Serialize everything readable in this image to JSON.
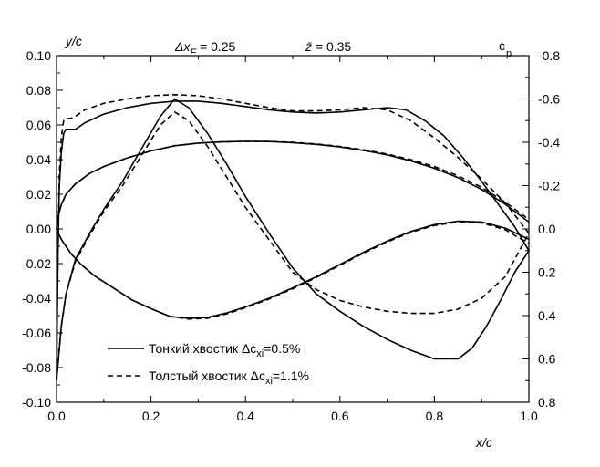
{
  "chart_data": {
    "type": "line",
    "x_axis": {
      "label": "x/c",
      "ticks": [
        "0.0",
        "0.2",
        "0.4",
        "0.6",
        "0.8",
        "1.0"
      ],
      "range": [
        0,
        1
      ]
    },
    "y_axis_left": {
      "label": "y/c",
      "ticks": [
        "0.10",
        "0.08",
        "0.06",
        "0.04",
        "0.02",
        "0.00",
        "-0.02",
        "-0.04",
        "-0.06",
        "-0.08",
        "-0.10"
      ],
      "range": [
        -0.1,
        0.1
      ]
    },
    "y_axis_right": {
      "label": "c",
      "label_sub": "p",
      "ticks": [
        "-0.8",
        "-0.6",
        "-0.4",
        "-0.2",
        "0.0",
        "0.2",
        "0.4",
        "0.6",
        "0.8"
      ],
      "range": [
        -0.8,
        0.8
      ],
      "inverted": true
    },
    "annotations": [
      {
        "id": "dxf",
        "main": "Δx",
        "sub": "F",
        "rest": " = 0.25"
      },
      {
        "id": "zbar",
        "main": "z̄",
        "rest": " = 0.35"
      }
    ],
    "legend": [
      {
        "id": "thin",
        "style": "solid",
        "text": "Тонкий хвостик   Δc",
        "sub": "xi",
        "rest": "=0.5%"
      },
      {
        "id": "thick",
        "style": "dashed",
        "text": "Толстый хвостик  Δc",
        "sub": "xi",
        "rest": "=1.1%"
      }
    ],
    "series": [
      {
        "legend": "thin",
        "style": "solid",
        "axis": "left",
        "x": [
          0,
          0.003,
          0.01,
          0.02,
          0.04,
          0.07,
          0.1,
          0.15,
          0.2,
          0.25,
          0.3,
          0.35,
          0.4,
          0.45,
          0.5,
          0.55,
          0.6,
          0.65,
          0.7,
          0.75,
          0.8,
          0.85,
          0.9,
          0.95,
          1.0
        ],
        "y": [
          0,
          0.007,
          0.014,
          0.02,
          0.026,
          0.032,
          0.036,
          0.041,
          0.045,
          0.048,
          0.0495,
          0.0502,
          0.0505,
          0.0504,
          0.0498,
          0.0488,
          0.0473,
          0.0453,
          0.0427,
          0.0393,
          0.035,
          0.0296,
          0.0228,
          0.0142,
          0.004
        ]
      },
      {
        "legend": "thick",
        "style": "dashed",
        "axis": "left",
        "x": [
          0,
          0.003,
          0.01,
          0.02,
          0.04,
          0.07,
          0.1,
          0.15,
          0.2,
          0.25,
          0.3,
          0.35,
          0.4,
          0.45,
          0.5,
          0.55,
          0.6,
          0.65,
          0.7,
          0.75,
          0.8,
          0.85,
          0.9,
          0.95,
          1.0
        ],
        "y": [
          0,
          0.007,
          0.014,
          0.02,
          0.026,
          0.032,
          0.036,
          0.041,
          0.045,
          0.048,
          0.0495,
          0.0502,
          0.0505,
          0.0505,
          0.05,
          0.049,
          0.0476,
          0.0457,
          0.0432,
          0.04,
          0.036,
          0.0307,
          0.024,
          0.0154,
          0.0055
        ]
      },
      {
        "legend": "thin",
        "style": "solid",
        "axis": "left",
        "x": [
          0,
          0.01,
          0.03,
          0.05,
          0.08,
          0.12,
          0.16,
          0.2,
          0.24,
          0.28,
          0.32,
          0.36,
          0.4,
          0.45,
          0.5,
          0.55,
          0.6,
          0.65,
          0.7,
          0.75,
          0.8,
          0.85,
          0.9,
          0.95,
          1.0
        ],
        "y": [
          0,
          -0.006,
          -0.014,
          -0.02,
          -0.027,
          -0.034,
          -0.041,
          -0.046,
          -0.0505,
          -0.0515,
          -0.051,
          -0.0485,
          -0.045,
          -0.04,
          -0.034,
          -0.0275,
          -0.0205,
          -0.0135,
          -0.007,
          -0.0015,
          0.0025,
          0.0045,
          0.004,
          0.0005,
          -0.006
        ]
      },
      {
        "legend": "thick",
        "style": "dashed",
        "axis": "left",
        "x": [
          0,
          0.01,
          0.03,
          0.05,
          0.08,
          0.12,
          0.16,
          0.2,
          0.24,
          0.28,
          0.32,
          0.36,
          0.4,
          0.45,
          0.5,
          0.55,
          0.6,
          0.65,
          0.7,
          0.75,
          0.8,
          0.85,
          0.9,
          0.95,
          1.0
        ],
        "y": [
          0,
          -0.006,
          -0.014,
          -0.02,
          -0.027,
          -0.034,
          -0.041,
          -0.046,
          -0.0505,
          -0.052,
          -0.0515,
          -0.049,
          -0.0455,
          -0.0405,
          -0.0345,
          -0.028,
          -0.021,
          -0.014,
          -0.0075,
          -0.002,
          0.002,
          0.004,
          0.0035,
          -0.0005,
          -0.0085
        ]
      },
      {
        "legend": "thin",
        "style": "solid",
        "axis": "right",
        "x": [
          0,
          0.003,
          0.006,
          0.01,
          0.015,
          0.02,
          0.03,
          0.04,
          0.06,
          0.1,
          0.15,
          0.2,
          0.25,
          0.3,
          0.35,
          0.4,
          0.45,
          0.5,
          0.55,
          0.6,
          0.65,
          0.7,
          0.74,
          0.78,
          0.82,
          0.86,
          0.9,
          0.94,
          0.97,
          1.0
        ],
        "y": [
          0.7,
          0.1,
          -0.2,
          -0.35,
          -0.44,
          -0.46,
          -0.46,
          -0.46,
          -0.49,
          -0.53,
          -0.56,
          -0.58,
          -0.59,
          -0.59,
          -0.58,
          -0.565,
          -0.55,
          -0.54,
          -0.535,
          -0.54,
          -0.55,
          -0.56,
          -0.55,
          -0.5,
          -0.43,
          -0.33,
          -0.22,
          -0.1,
          -0.01,
          0.1
        ]
      },
      {
        "legend": "thick",
        "style": "dashed",
        "axis": "right",
        "x": [
          0,
          0.003,
          0.006,
          0.01,
          0.015,
          0.02,
          0.03,
          0.04,
          0.06,
          0.1,
          0.15,
          0.2,
          0.25,
          0.3,
          0.35,
          0.4,
          0.45,
          0.5,
          0.55,
          0.6,
          0.65,
          0.7,
          0.75,
          0.8,
          0.85,
          0.9,
          0.95,
          1.0
        ],
        "y": [
          0.7,
          0.1,
          -0.25,
          -0.42,
          -0.5,
          -0.51,
          -0.51,
          -0.52,
          -0.55,
          -0.58,
          -0.6,
          -0.615,
          -0.62,
          -0.615,
          -0.6,
          -0.58,
          -0.56,
          -0.545,
          -0.545,
          -0.55,
          -0.56,
          -0.55,
          -0.5,
          -0.42,
          -0.33,
          -0.23,
          -0.12,
          0.02
        ]
      },
      {
        "legend": "thin",
        "style": "solid",
        "axis": "right",
        "x": [
          0,
          0.01,
          0.02,
          0.04,
          0.07,
          0.1,
          0.14,
          0.18,
          0.22,
          0.25,
          0.28,
          0.32,
          0.36,
          0.4,
          0.45,
          0.5,
          0.55,
          0.6,
          0.65,
          0.7,
          0.75,
          0.8,
          0.85,
          0.88,
          0.91,
          0.94,
          0.97,
          1.0
        ],
        "y": [
          0.7,
          0.45,
          0.3,
          0.14,
          0.02,
          -0.09,
          -0.22,
          -0.37,
          -0.52,
          -0.6,
          -0.56,
          -0.44,
          -0.3,
          -0.15,
          0.02,
          0.18,
          0.3,
          0.38,
          0.45,
          0.51,
          0.56,
          0.6,
          0.6,
          0.55,
          0.45,
          0.33,
          0.2,
          0.1
        ]
      },
      {
        "legend": "thick",
        "style": "dashed",
        "axis": "right",
        "x": [
          0,
          0.01,
          0.02,
          0.04,
          0.07,
          0.1,
          0.14,
          0.18,
          0.22,
          0.25,
          0.28,
          0.32,
          0.36,
          0.4,
          0.45,
          0.5,
          0.55,
          0.6,
          0.65,
          0.7,
          0.75,
          0.8,
          0.85,
          0.9,
          0.95,
          1.0
        ],
        "y": [
          0.7,
          0.45,
          0.3,
          0.15,
          0.03,
          -0.08,
          -0.2,
          -0.34,
          -0.48,
          -0.54,
          -0.5,
          -0.38,
          -0.24,
          -0.1,
          0.05,
          0.2,
          0.28,
          0.33,
          0.36,
          0.38,
          0.39,
          0.39,
          0.37,
          0.32,
          0.22,
          0.02
        ]
      }
    ]
  }
}
